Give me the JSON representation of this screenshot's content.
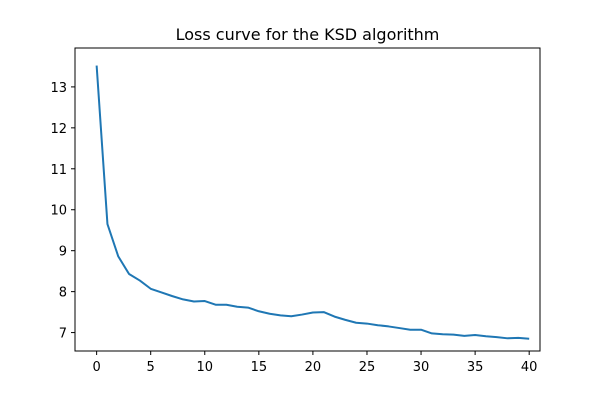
{
  "chart_data": {
    "type": "line",
    "title": "Loss curve for the KSD algorithm",
    "xlabel": "",
    "ylabel": "",
    "xlim": [
      -2,
      41
    ],
    "ylim": [
      6.55,
      13.95
    ],
    "xticks": [
      0,
      5,
      10,
      15,
      20,
      25,
      30,
      35,
      40
    ],
    "yticks": [
      7,
      8,
      9,
      10,
      11,
      12,
      13
    ],
    "grid": false,
    "legend": "none",
    "series": [
      {
        "color": "#1f77b4",
        "x": [
          0,
          1,
          2,
          3,
          4,
          5,
          6,
          7,
          8,
          9,
          10,
          11,
          12,
          13,
          14,
          15,
          16,
          17,
          18,
          19,
          20,
          21,
          22,
          23,
          24,
          25,
          26,
          27,
          28,
          29,
          30,
          31,
          32,
          33,
          34,
          35,
          36,
          37,
          38,
          39,
          40
        ],
        "values": [
          13.52,
          9.65,
          8.86,
          8.43,
          8.27,
          8.07,
          7.98,
          7.89,
          7.81,
          7.76,
          7.77,
          7.68,
          7.68,
          7.63,
          7.61,
          7.52,
          7.46,
          7.42,
          7.4,
          7.44,
          7.49,
          7.5,
          7.39,
          7.31,
          7.24,
          7.22,
          7.18,
          7.15,
          7.11,
          7.07,
          7.07,
          6.98,
          6.96,
          6.95,
          6.92,
          6.94,
          6.91,
          6.89,
          6.86,
          6.87,
          6.85
        ]
      }
    ]
  }
}
